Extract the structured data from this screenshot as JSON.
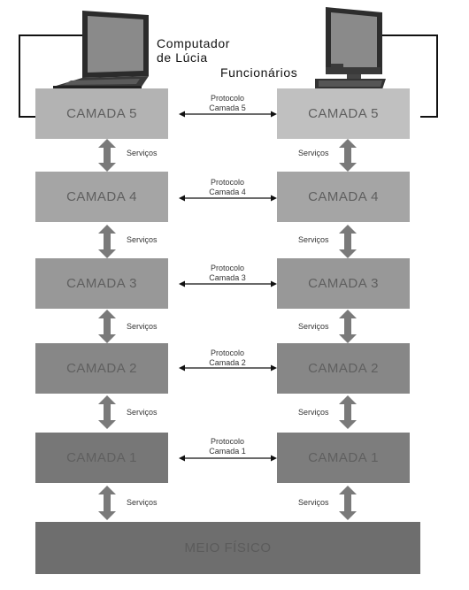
{
  "devices": {
    "laptop_label_line1": "Computador",
    "laptop_label_line2": "de Lúcia",
    "desktop_label": "Funcionários"
  },
  "layers": [
    {
      "left": "CAMADA 5",
      "right": "CAMADA 5",
      "protocol_line1": "Protocolo",
      "protocol_line2": "Camada 5",
      "left_color": "#b3b3b3",
      "right_color": "#c0c0c0"
    },
    {
      "left": "CAMADA 4",
      "right": "CAMADA 4",
      "protocol_line1": "Protocolo",
      "protocol_line2": "Camada 4",
      "left_color": "#a5a5a5",
      "right_color": "#a5a5a5"
    },
    {
      "left": "CAMADA 3",
      "right": "CAMADA 3",
      "protocol_line1": "Protocolo",
      "protocol_line2": "Camada 3",
      "left_color": "#989898",
      "right_color": "#989898"
    },
    {
      "left": "CAMADA 2",
      "right": "CAMADA 2",
      "protocol_line1": "Protocolo",
      "protocol_line2": "Camada 2",
      "left_color": "#878787",
      "right_color": "#878787"
    },
    {
      "left": "CAMADA 1",
      "right": "CAMADA 1",
      "protocol_line1": "Protocolo",
      "protocol_line2": "Camada 1",
      "left_color": "#777777",
      "right_color": "#7d7d7d"
    }
  ],
  "services_label": "Serviços",
  "physical_medium": "MEIO FÍSICO",
  "colors": {
    "arrow_gray": "#7a7a7a",
    "connector": "#111111"
  }
}
